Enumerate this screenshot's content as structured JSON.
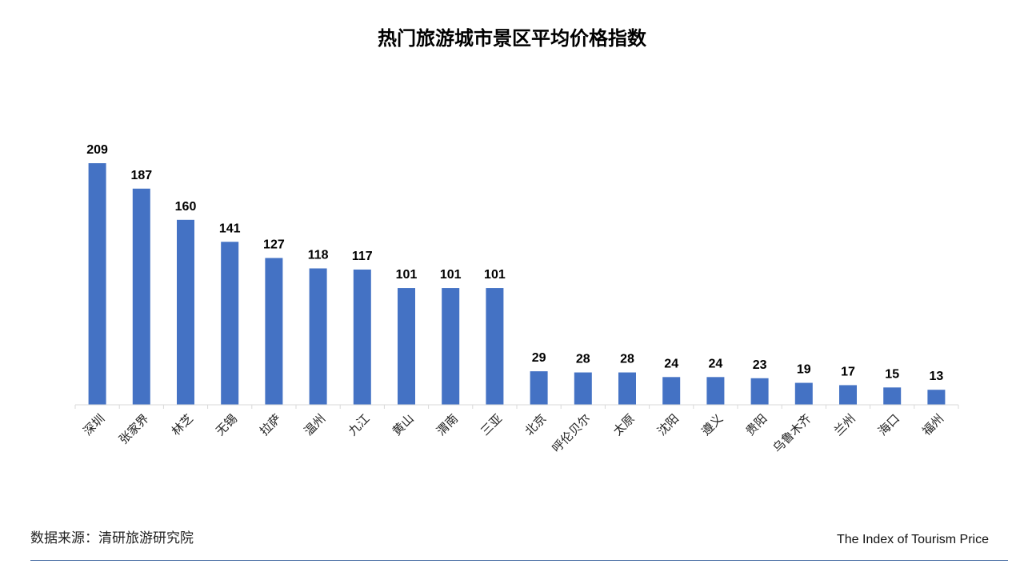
{
  "title": "热门旅游城市景区平均价格指数",
  "source": "数据来源：清研旅游研究院",
  "subtitle": "The Index of Tourism Price",
  "chart_data": {
    "type": "bar",
    "title": "热门旅游城市景区平均价格指数",
    "categories": [
      "深圳",
      "张家界",
      "林芝",
      "无锡",
      "拉萨",
      "温州",
      "九江",
      "黄山",
      "渭南",
      "三亚",
      "北京",
      "呼伦贝尔",
      "太原",
      "沈阳",
      "遵义",
      "贵阳",
      "乌鲁木齐",
      "兰州",
      "海口",
      "福州"
    ],
    "values": [
      209,
      187,
      160,
      141,
      127,
      118,
      117,
      101,
      101,
      101,
      29,
      28,
      28,
      24,
      24,
      23,
      19,
      17,
      15,
      13
    ],
    "bar_color": "#4472C4",
    "xlabel": "",
    "ylabel": "",
    "ylim": [
      0,
      209
    ],
    "grid": false,
    "legend": false
  }
}
